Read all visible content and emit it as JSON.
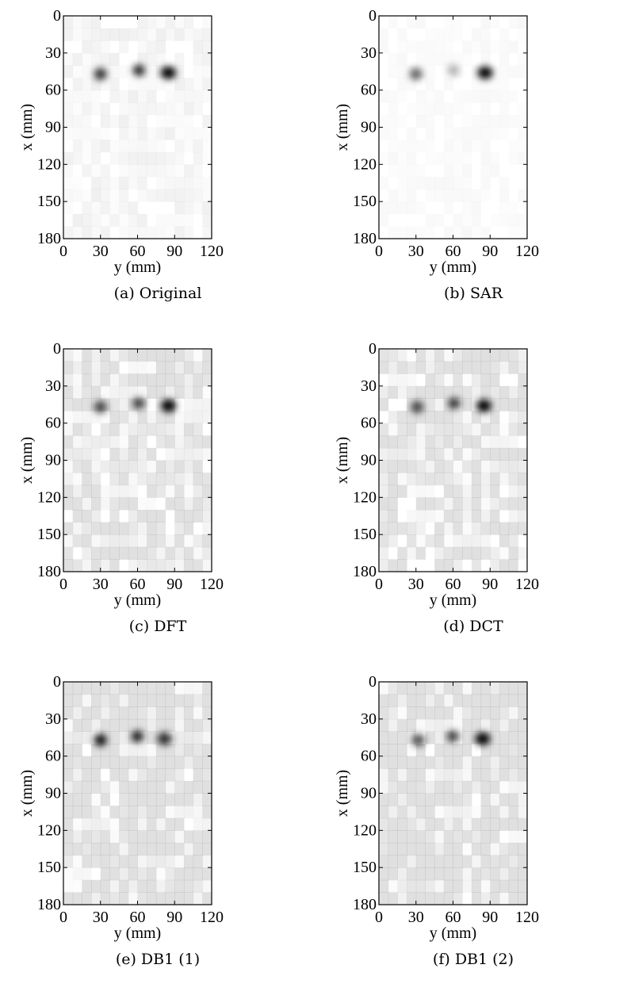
{
  "chart_data": [
    {
      "id": "a",
      "type": "heatmap",
      "caption": "(a) Original",
      "xlabel": "y (mm)",
      "ylabel": "x (mm)",
      "xlim": [
        0,
        120
      ],
      "ylim": [
        0,
        180
      ],
      "y_axis_inverted": true,
      "x_ticks": [
        0,
        30,
        60,
        90,
        120
      ],
      "y_ticks": [
        0,
        30,
        60,
        90,
        120,
        150,
        180
      ],
      "colormap": "grayscale (white = low, black = high)",
      "background_noise": 0.01,
      "blobs": [
        {
          "x": 30,
          "y": 47,
          "intensity": 0.8
        },
        {
          "x": 61,
          "y": 44,
          "intensity": 0.85
        },
        {
          "x": 85,
          "y": 46,
          "intensity": 1.0
        }
      ]
    },
    {
      "id": "b",
      "type": "heatmap",
      "caption": "(b) SAR",
      "xlabel": "y (mm)",
      "ylabel": "x (mm)",
      "xlim": [
        0,
        120
      ],
      "ylim": [
        0,
        180
      ],
      "y_axis_inverted": true,
      "x_ticks": [
        0,
        30,
        60,
        90,
        120
      ],
      "y_ticks": [
        0,
        30,
        60,
        90,
        120,
        150,
        180
      ],
      "colormap": "grayscale (white = low, black = high)",
      "background_noise": 0.005,
      "blobs": [
        {
          "x": 30,
          "y": 47,
          "intensity": 0.6
        },
        {
          "x": 60,
          "y": 44,
          "intensity": 0.3
        },
        {
          "x": 86,
          "y": 46,
          "intensity": 1.0
        }
      ]
    },
    {
      "id": "c",
      "type": "heatmap",
      "caption": "(c) DFT",
      "xlabel": "y (mm)",
      "ylabel": "x (mm)",
      "xlim": [
        0,
        120
      ],
      "ylim": [
        0,
        180
      ],
      "y_axis_inverted": true,
      "x_ticks": [
        0,
        30,
        60,
        90,
        120
      ],
      "y_ticks": [
        0,
        30,
        60,
        90,
        120,
        150,
        180
      ],
      "colormap": "grayscale (white = low, black = high)",
      "background_noise": 0.03,
      "blobs": [
        {
          "x": 30,
          "y": 47,
          "intensity": 0.7
        },
        {
          "x": 61,
          "y": 44,
          "intensity": 0.75
        },
        {
          "x": 85,
          "y": 46,
          "intensity": 1.0
        }
      ]
    },
    {
      "id": "d",
      "type": "heatmap",
      "caption": "(d) DCT",
      "xlabel": "y (mm)",
      "ylabel": "x (mm)",
      "xlim": [
        0,
        120
      ],
      "ylim": [
        0,
        180
      ],
      "y_axis_inverted": true,
      "x_ticks": [
        0,
        30,
        60,
        90,
        120
      ],
      "y_ticks": [
        0,
        30,
        60,
        90,
        120,
        150,
        180
      ],
      "colormap": "grayscale (white = low, black = high)",
      "background_noise": 0.03,
      "blobs": [
        {
          "x": 31,
          "y": 47,
          "intensity": 0.7
        },
        {
          "x": 61,
          "y": 44,
          "intensity": 0.8
        },
        {
          "x": 85,
          "y": 46,
          "intensity": 1.0
        }
      ]
    },
    {
      "id": "e",
      "type": "heatmap",
      "caption": "(e) DB1 (1)",
      "xlabel": "y (mm)",
      "ylabel": "x (mm)",
      "xlim": [
        0,
        120
      ],
      "ylim": [
        0,
        180
      ],
      "y_axis_inverted": true,
      "x_ticks": [
        0,
        30,
        60,
        90,
        120
      ],
      "y_ticks": [
        0,
        30,
        60,
        90,
        120,
        150,
        180
      ],
      "colormap": "grayscale (white = low, black = high)",
      "background_noise": 0.05,
      "blobs": [
        {
          "x": 30,
          "y": 47,
          "intensity": 0.95
        },
        {
          "x": 60,
          "y": 44,
          "intensity": 0.9
        },
        {
          "x": 82,
          "y": 46,
          "intensity": 0.8
        }
      ]
    },
    {
      "id": "f",
      "type": "heatmap",
      "caption": "(f) DB1 (2)",
      "xlabel": "y (mm)",
      "ylabel": "x (mm)",
      "xlim": [
        0,
        120
      ],
      "ylim": [
        0,
        180
      ],
      "y_axis_inverted": true,
      "x_ticks": [
        0,
        30,
        60,
        90,
        120
      ],
      "y_ticks": [
        0,
        30,
        60,
        90,
        120,
        150,
        180
      ],
      "colormap": "grayscale (white = low, black = high)",
      "background_noise": 0.05,
      "blobs": [
        {
          "x": 32,
          "y": 47,
          "intensity": 0.7
        },
        {
          "x": 60,
          "y": 44,
          "intensity": 0.75
        },
        {
          "x": 84,
          "y": 46,
          "intensity": 1.0
        }
      ]
    }
  ]
}
